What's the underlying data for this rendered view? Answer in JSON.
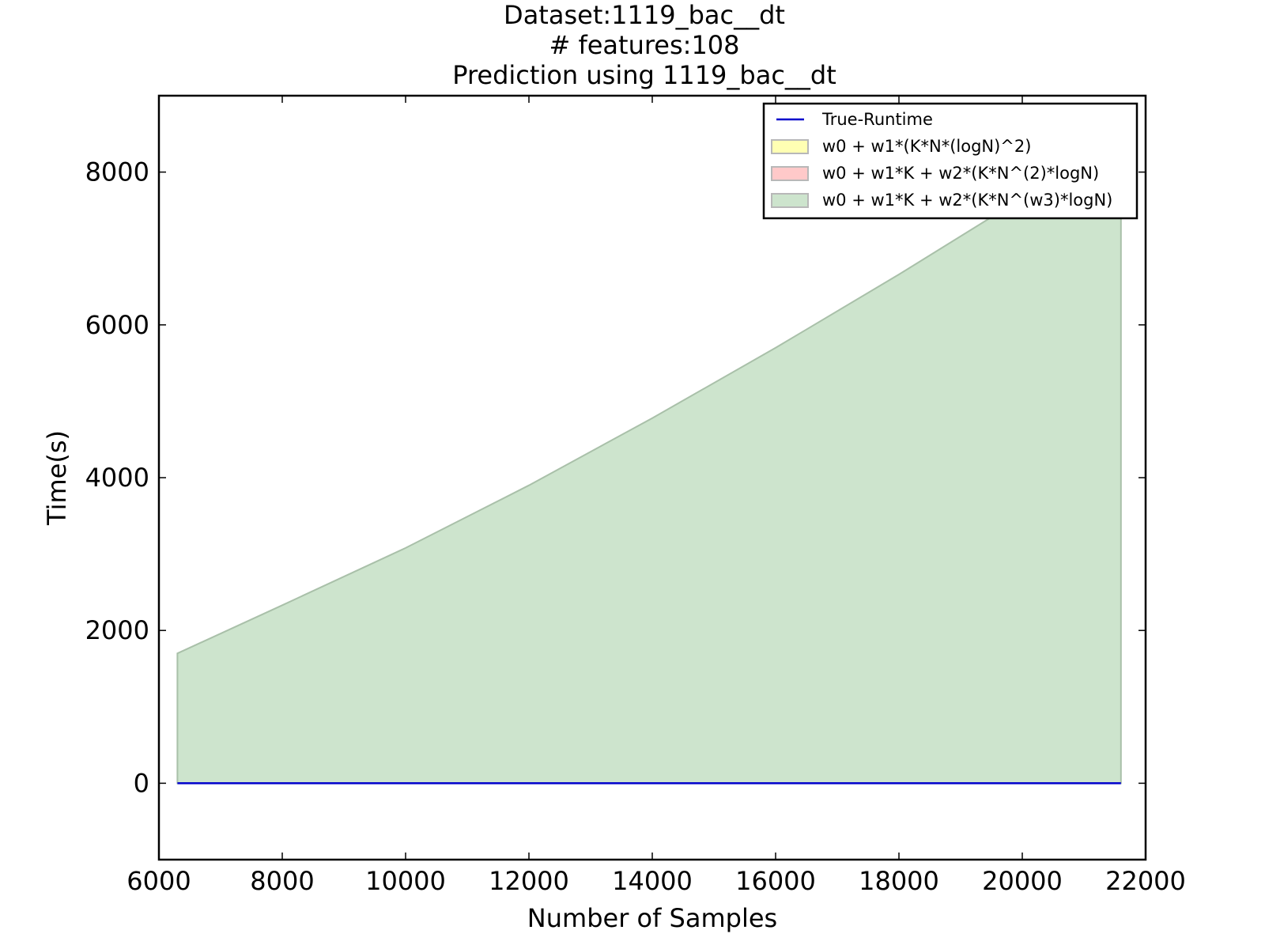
{
  "chart_data": {
    "type": "area",
    "title": [
      "Dataset:1119_bac__dt",
      "# features:108",
      "Prediction using 1119_bac__dt"
    ],
    "xlabel": "Number of Samples",
    "ylabel": "Time(s)",
    "xlim": [
      6000,
      22000
    ],
    "ylim": [
      -1000,
      9000
    ],
    "xticks": [
      6000,
      8000,
      10000,
      12000,
      14000,
      16000,
      18000,
      20000,
      22000
    ],
    "yticks": [
      0,
      2000,
      4000,
      6000,
      8000
    ],
    "grid": false,
    "legend_position": "top-right",
    "series": [
      {
        "name": "True-Runtime",
        "kind": "line",
        "color": "#0000cc",
        "x": [
          6300,
          21600
        ],
        "y": [
          0,
          0
        ]
      },
      {
        "name": "w0 + w1*(K*N*(logN)^2)",
        "kind": "band",
        "color": "#ffffb3",
        "x": [
          6300,
          21600
        ],
        "y_low": [
          0,
          0
        ],
        "y_high": [
          0,
          0
        ]
      },
      {
        "name": "w0 + w1*K + w2*(K*N^(2)*logN)",
        "kind": "band",
        "color": "#ffc9c9",
        "x": [
          6300,
          21600
        ],
        "y_low": [
          0,
          0
        ],
        "y_high": [
          0,
          0
        ]
      },
      {
        "name": "w0 + w1*K + w2*(K*N^(w3)*logN)",
        "kind": "band",
        "color": "#cde4cd",
        "edge": "#a9c0a9",
        "x": [
          6300,
          8000,
          10000,
          12000,
          14000,
          16000,
          18000,
          20000,
          21600
        ],
        "y_low": [
          0,
          0,
          0,
          0,
          0,
          0,
          0,
          0,
          0
        ],
        "y_high": [
          1700,
          2330,
          3080,
          3900,
          4780,
          5700,
          6660,
          7660,
          8500
        ]
      }
    ]
  }
}
